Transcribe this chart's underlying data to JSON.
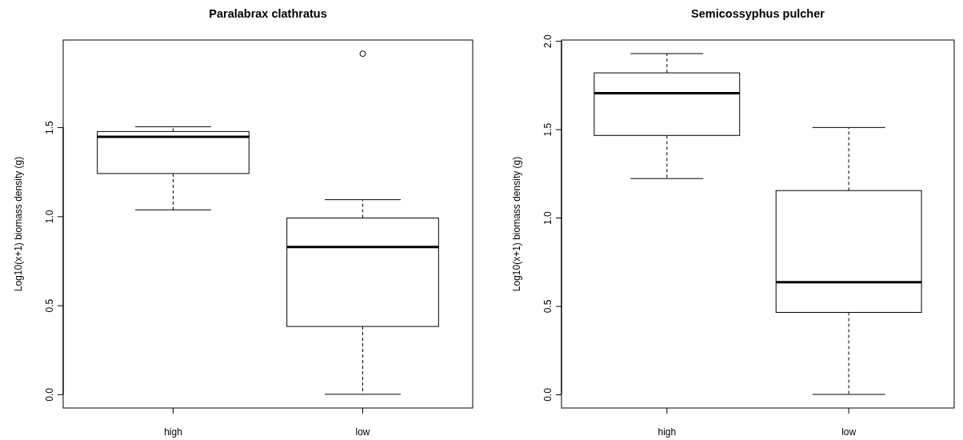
{
  "chart_data": [
    {
      "type": "box",
      "title": "Paralabrax clathratus",
      "ylabel": "Log10(x+1) biomass density (g)",
      "categories": [
        "high",
        "low"
      ],
      "ylim": [
        -0.077,
        1.99
      ],
      "yticks": [
        {
          "value": 0,
          "label": "0.0"
        },
        {
          "value": 0.5,
          "label": "0.5"
        },
        {
          "value": 1,
          "label": "1.0"
        },
        {
          "value": 1.5,
          "label": "1.5"
        }
      ],
      "boxes": [
        {
          "low": 1.036,
          "q1": 1.24,
          "median": 1.446,
          "q3": 1.476,
          "high": 1.503
        },
        {
          "low": 0,
          "q1": 0.381,
          "median": 0.827,
          "q3": 0.99,
          "high": 1.093,
          "outliers": [
            1.913
          ]
        }
      ]
    },
    {
      "type": "box",
      "title": "Semicossyphus pulcher",
      "ylabel": "Log10(x+1) biomass density (g)",
      "categories": [
        "high",
        "low"
      ],
      "ylim": [
        -0.077,
        2.005
      ],
      "yticks": [
        {
          "value": 0,
          "label": "0.0"
        },
        {
          "value": 0.5,
          "label": "0.5"
        },
        {
          "value": 1,
          "label": "1.0"
        },
        {
          "value": 1.5,
          "label": "1.5"
        },
        {
          "value": 2,
          "label": "2.0"
        }
      ],
      "boxes": [
        {
          "low": 1.221,
          "q1": 1.465,
          "median": 1.704,
          "q3": 1.819,
          "high": 1.928
        },
        {
          "low": 0,
          "q1": 0.464,
          "median": 0.635,
          "q3": 1.153,
          "high": 1.51
        }
      ]
    }
  ]
}
